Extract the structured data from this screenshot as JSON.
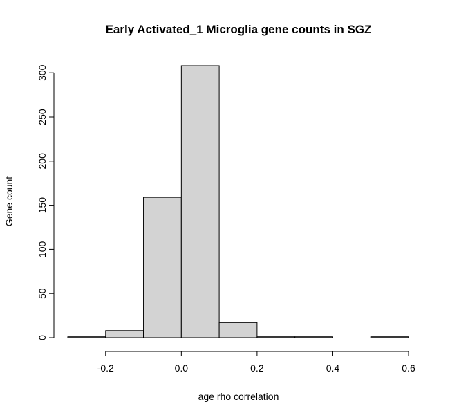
{
  "chart_data": {
    "type": "bar",
    "title": "Early Activated_1 Microglia gene counts in SGZ",
    "xlabel": "age rho correlation",
    "ylabel": "Gene count",
    "bin_edges": [
      -0.3,
      -0.2,
      -0.1,
      0.0,
      0.1,
      0.2,
      0.3,
      0.4,
      0.5,
      0.6
    ],
    "values": [
      1,
      8,
      159,
      308,
      17,
      1,
      1,
      0,
      1
    ],
    "x_ticks": [
      -0.2,
      0.0,
      0.2,
      0.4,
      0.6
    ],
    "x_tick_labels": [
      "-0.2",
      "0.0",
      "0.2",
      "0.4",
      "0.6"
    ],
    "y_ticks": [
      0,
      50,
      100,
      150,
      200,
      250,
      300
    ],
    "y_tick_labels": [
      "0",
      "50",
      "100",
      "150",
      "200",
      "250",
      "300"
    ],
    "xlim": [
      -0.3,
      0.6
    ],
    "ylim": [
      0,
      308
    ],
    "grid": false,
    "legend": "none",
    "bar_fill": "#d3d3d3",
    "bar_stroke": "#000000"
  }
}
